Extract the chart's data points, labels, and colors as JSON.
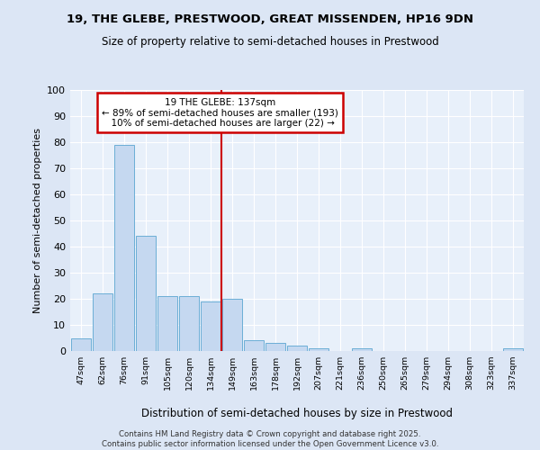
{
  "title1": "19, THE GLEBE, PRESTWOOD, GREAT MISSENDEN, HP16 9DN",
  "title2": "Size of property relative to semi-detached houses in Prestwood",
  "xlabel": "Distribution of semi-detached houses by size in Prestwood",
  "ylabel": "Number of semi-detached properties",
  "categories": [
    "47sqm",
    "62sqm",
    "76sqm",
    "91sqm",
    "105sqm",
    "120sqm",
    "134sqm",
    "149sqm",
    "163sqm",
    "178sqm",
    "192sqm",
    "207sqm",
    "221sqm",
    "236sqm",
    "250sqm",
    "265sqm",
    "279sqm",
    "294sqm",
    "308sqm",
    "323sqm",
    "337sqm"
  ],
  "values": [
    5,
    22,
    79,
    44,
    21,
    21,
    19,
    20,
    4,
    3,
    2,
    1,
    0,
    1,
    0,
    0,
    0,
    0,
    0,
    0,
    1
  ],
  "bar_color": "#c5d8f0",
  "bar_edge_color": "#6baed6",
  "vline_x_index": 6.5,
  "vline_color": "#cc0000",
  "annotation_line1": "19 THE GLEBE: 137sqm",
  "annotation_line2": "← 89% of semi-detached houses are smaller (193)",
  "annotation_line3": "  10% of semi-detached houses are larger (22) →",
  "annotation_box_color": "#cc0000",
  "ylim": [
    0,
    100
  ],
  "yticks": [
    0,
    10,
    20,
    30,
    40,
    50,
    60,
    70,
    80,
    90,
    100
  ],
  "bg_color": "#dce6f5",
  "plot_bg_color": "#e8f0fa",
  "grid_color": "#ffffff",
  "footer": "Contains HM Land Registry data © Crown copyright and database right 2025.\nContains public sector information licensed under the Open Government Licence v3.0."
}
